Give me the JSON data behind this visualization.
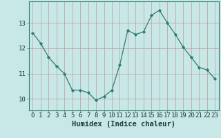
{
  "x": [
    0,
    1,
    2,
    3,
    4,
    5,
    6,
    7,
    8,
    9,
    10,
    11,
    12,
    13,
    14,
    15,
    16,
    17,
    18,
    19,
    20,
    21,
    22,
    23
  ],
  "y": [
    12.6,
    12.2,
    11.65,
    11.3,
    11.0,
    10.35,
    10.35,
    10.25,
    9.95,
    10.1,
    10.35,
    11.35,
    12.7,
    12.55,
    12.65,
    13.3,
    13.5,
    13.0,
    12.55,
    12.05,
    11.65,
    11.25,
    11.15,
    10.8
  ],
  "line_color": "#2e7d6e",
  "marker": "D",
  "marker_size": 2.2,
  "bg_color": "#c8e8e8",
  "grid_color": "#c09898",
  "xlabel": "Humidex (Indice chaleur)",
  "xlabel_fontsize": 7.5,
  "tick_fontsize": 6.5,
  "ylabel_ticks": [
    10,
    11,
    12,
    13
  ],
  "ylim": [
    9.55,
    13.85
  ],
  "xlim": [
    -0.5,
    23.5
  ],
  "line_width": 0.9
}
